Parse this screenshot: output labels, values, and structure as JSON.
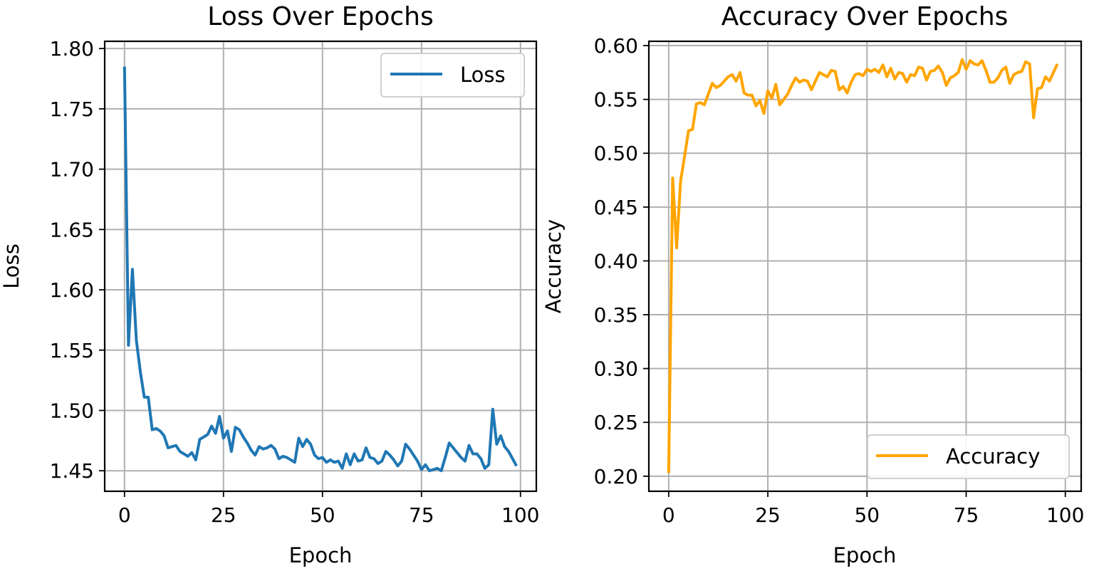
{
  "chart_data": [
    {
      "type": "line",
      "title": "Loss Over Epochs",
      "xlabel": "Epoch",
      "ylabel": "Loss",
      "xlim": [
        -5,
        104
      ],
      "ylim": [
        1.433,
        1.806
      ],
      "xticks": [
        0,
        25,
        50,
        75,
        100
      ],
      "yticks": [
        1.45,
        1.5,
        1.55,
        1.6,
        1.65,
        1.7,
        1.75,
        1.8
      ],
      "ytick_labels": [
        "1.45",
        "1.50",
        "1.55",
        "1.60",
        "1.65",
        "1.70",
        "1.75",
        "1.80"
      ],
      "grid": true,
      "legend_position": "upper right",
      "series": [
        {
          "name": "Loss",
          "color": "#1f77b4",
          "values": [
            1.785,
            1.554,
            1.617,
            1.558,
            1.532,
            1.511,
            1.511,
            1.484,
            1.485,
            1.483,
            1.479,
            1.469,
            1.47,
            1.471,
            1.466,
            1.464,
            1.462,
            1.465,
            1.459,
            1.476,
            1.478,
            1.48,
            1.487,
            1.481,
            1.495,
            1.477,
            1.483,
            1.466,
            1.486,
            1.484,
            1.478,
            1.473,
            1.467,
            1.463,
            1.47,
            1.468,
            1.469,
            1.471,
            1.468,
            1.46,
            1.462,
            1.461,
            1.459,
            1.457,
            1.477,
            1.47,
            1.476,
            1.472,
            1.463,
            1.46,
            1.461,
            1.457,
            1.459,
            1.457,
            1.458,
            1.452,
            1.464,
            1.455,
            1.464,
            1.458,
            1.459,
            1.469,
            1.461,
            1.46,
            1.456,
            1.458,
            1.466,
            1.463,
            1.459,
            1.454,
            1.458,
            1.472,
            1.468,
            1.463,
            1.458,
            1.451,
            1.455,
            1.45,
            1.451,
            1.452,
            1.45,
            1.461,
            1.473,
            1.469,
            1.465,
            1.461,
            1.458,
            1.471,
            1.464,
            1.464,
            1.46,
            1.452,
            1.455,
            1.501,
            1.472,
            1.479,
            1.47,
            1.466,
            1.46,
            1.454
          ]
        }
      ]
    },
    {
      "type": "line",
      "title": "Accuracy Over Epochs",
      "xlabel": "Epoch",
      "ylabel": "Accuracy",
      "xlim": [
        -5,
        104
      ],
      "ylim": [
        0.186,
        0.604
      ],
      "xticks": [
        0,
        25,
        50,
        75,
        100
      ],
      "yticks": [
        0.2,
        0.25,
        0.3,
        0.35,
        0.4,
        0.45,
        0.5,
        0.55,
        0.6
      ],
      "ytick_labels": [
        "0.20",
        "0.25",
        "0.30",
        "0.35",
        "0.40",
        "0.45",
        "0.50",
        "0.55",
        "0.60"
      ],
      "grid": true,
      "legend_position": "lower right",
      "series": [
        {
          "name": "Accuracy",
          "color": "#ffa500",
          "values": [
            0.203,
            0.477,
            0.412,
            0.474,
            0.497,
            0.521,
            0.522,
            0.546,
            0.547,
            0.545,
            0.555,
            0.565,
            0.561,
            0.563,
            0.567,
            0.571,
            0.573,
            0.567,
            0.575,
            0.556,
            0.554,
            0.554,
            0.544,
            0.549,
            0.537,
            0.558,
            0.551,
            0.564,
            0.545,
            0.55,
            0.555,
            0.563,
            0.57,
            0.566,
            0.568,
            0.567,
            0.559,
            0.567,
            0.575,
            0.573,
            0.571,
            0.577,
            0.576,
            0.559,
            0.562,
            0.556,
            0.566,
            0.573,
            0.574,
            0.572,
            0.578,
            0.576,
            0.578,
            0.575,
            0.582,
            0.571,
            0.579,
            0.569,
            0.575,
            0.574,
            0.566,
            0.573,
            0.572,
            0.58,
            0.579,
            0.568,
            0.576,
            0.577,
            0.581,
            0.575,
            0.563,
            0.57,
            0.572,
            0.575,
            0.587,
            0.578,
            0.586,
            0.583,
            0.582,
            0.586,
            0.577,
            0.566,
            0.566,
            0.57,
            0.577,
            0.58,
            0.565,
            0.573,
            0.575,
            0.576,
            0.585,
            0.583,
            0.533,
            0.56,
            0.561,
            0.571,
            0.567,
            0.575,
            0.583
          ]
        }
      ]
    }
  ]
}
